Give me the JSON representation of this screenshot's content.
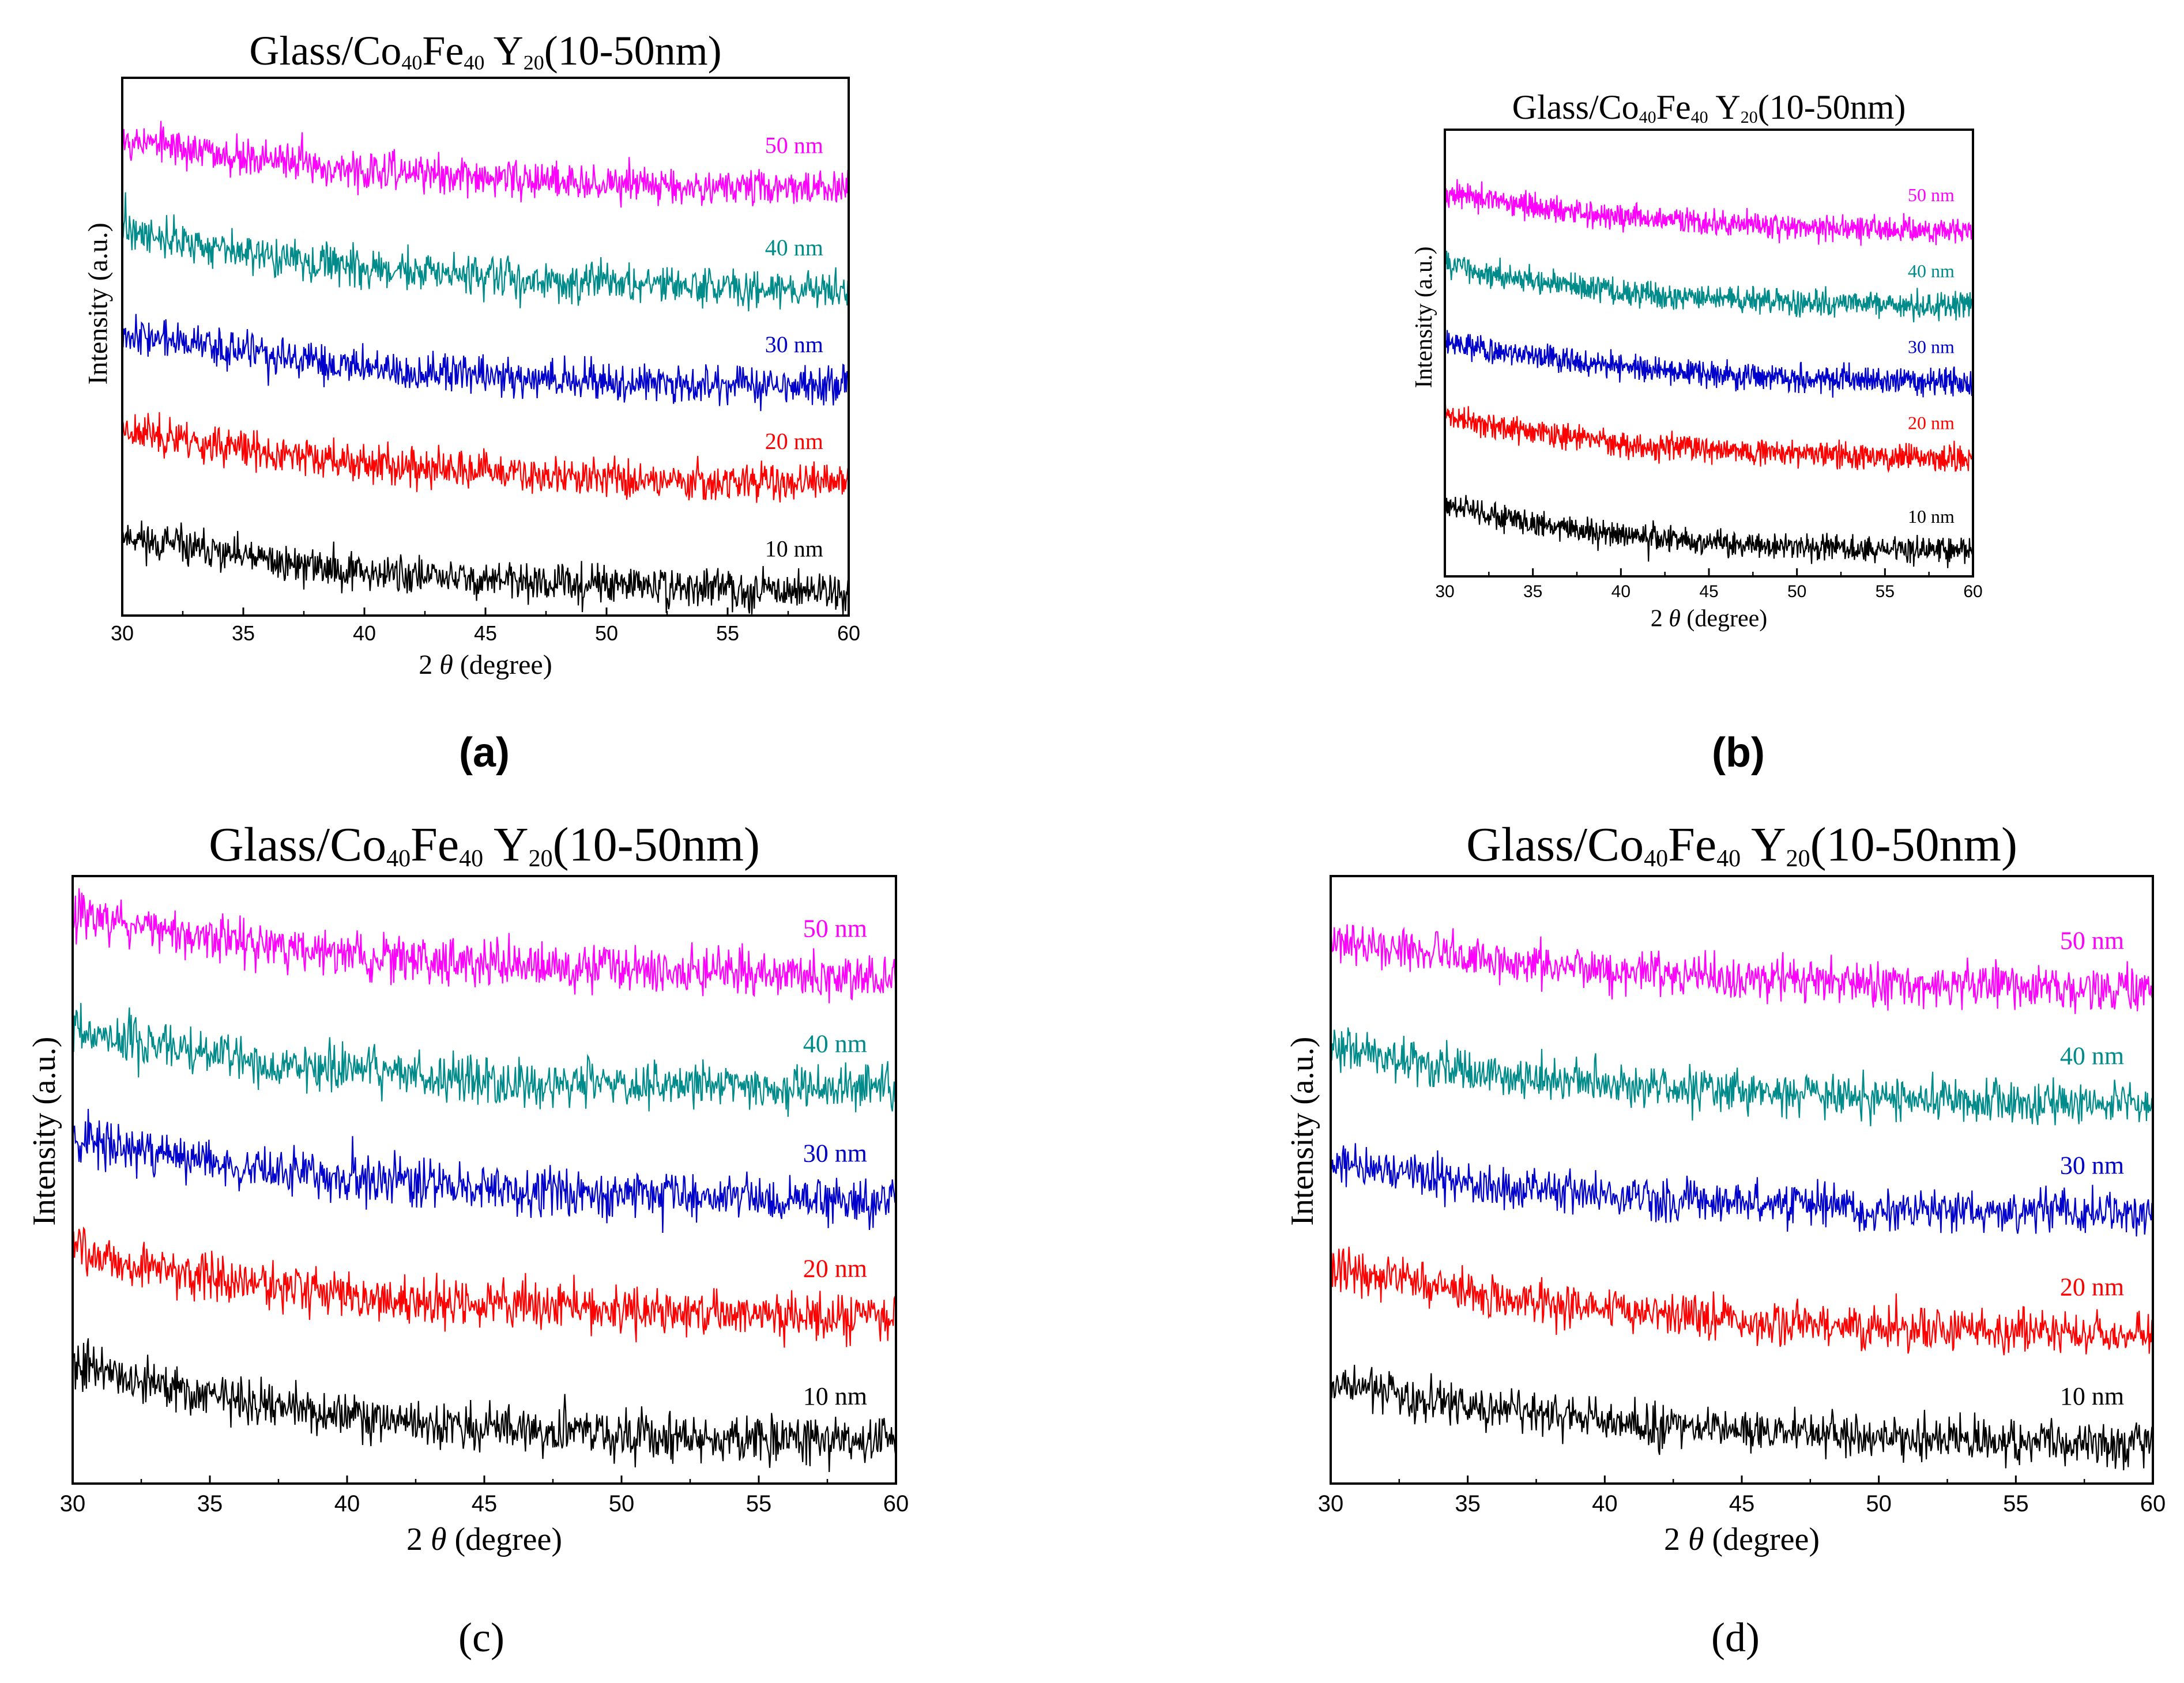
{
  "figure": {
    "panels": [
      {
        "label": "(a)",
        "title_parts": {
          "pre": "Glass/Co",
          "co_sub": "40",
          "fe": "Fe",
          "fe_sub": "40",
          "y": "Y",
          "y_sub": "20",
          "post": "(10-50nm)"
        },
        "xlabel_theta": "θ",
        "xlabel_prefix": "2",
        "xlabel_suffix": "(degree)",
        "ylabel": "Intensity (a.u.)"
      },
      {
        "label": "(b)",
        "title_parts": {
          "pre": "Glass/Co",
          "co_sub": "40",
          "fe": "Fe",
          "fe_sub": "40",
          "y": "Y",
          "y_sub": "20",
          "post": "(10-50nm)"
        },
        "xlabel_theta": "θ",
        "xlabel_prefix": "2",
        "xlabel_suffix": "(degree)",
        "ylabel": "Intensity (a.u.)"
      },
      {
        "label": "(c)",
        "title_parts": {
          "pre": "Glass/Co",
          "co_sub": "40",
          "fe": "Fe",
          "fe_sub": "40",
          "y": "Y",
          "y_sub": "20",
          "post": "(10-50nm)"
        },
        "xlabel_theta": "θ",
        "xlabel_prefix": "2",
        "xlabel_suffix": "(degree)",
        "ylabel": "Intensity (a.u.)"
      },
      {
        "label": "(d)",
        "title_parts": {
          "pre": "Glass/Co",
          "co_sub": "40",
          "fe": "Fe",
          "fe_sub": "40",
          "y": "Y",
          "y_sub": "20",
          "post": "(10-50nm)"
        },
        "xlabel_theta": "θ",
        "xlabel_prefix": "2",
        "xlabel_suffix": "(degree)",
        "ylabel": "Intensity (a.u.)"
      }
    ]
  },
  "chart_data": [
    {
      "type": "line",
      "panel": "(a)",
      "title": "Glass/Co40Fe40Y20(10-50nm)",
      "xlabel": "2 θ (degree)",
      "ylabel": "Intensity (a.u.)",
      "xlim": [
        30,
        60
      ],
      "ylim": [
        0,
        100
      ],
      "xticks": [
        "30",
        "35",
        "40",
        "45",
        "50",
        "55",
        "60"
      ],
      "series": [
        {
          "name": "10 nm",
          "color": "#000000",
          "start": 15,
          "end": 4,
          "noise": 2.2,
          "seed": 11
        },
        {
          "name": "20 nm",
          "color": "#ff0000",
          "start": 35,
          "end": 24,
          "noise": 2.2,
          "seed": 23
        },
        {
          "name": "30 nm",
          "color": "#0000cc",
          "start": 53,
          "end": 42,
          "noise": 2.2,
          "seed": 37
        },
        {
          "name": "40 nm",
          "color": "#008b8b",
          "start": 72,
          "end": 60,
          "noise": 2.2,
          "seed": 41
        },
        {
          "name": "50 nm",
          "color": "#ff00ff",
          "start": 89,
          "end": 79,
          "noise": 2.2,
          "seed": 53
        }
      ]
    },
    {
      "type": "line",
      "panel": "(b)",
      "title": "Glass/Co40Fe40Y20(10-50nm)",
      "xlabel": "2 θ (degree)",
      "ylabel": "Intensity (a.u.)",
      "xlim": [
        30,
        60
      ],
      "ylim": [
        0,
        100
      ],
      "xticks": [
        "30",
        "35",
        "40",
        "45",
        "50",
        "55",
        "60"
      ],
      "series": [
        {
          "name": "10 nm",
          "color": "#000000",
          "start": 16,
          "end": 5,
          "noise": 1.8,
          "seed": 61
        },
        {
          "name": "20 nm",
          "color": "#ff0000",
          "start": 36,
          "end": 26,
          "noise": 1.8,
          "seed": 71
        },
        {
          "name": "30 nm",
          "color": "#0000cc",
          "start": 53,
          "end": 43,
          "noise": 1.8,
          "seed": 79
        },
        {
          "name": "40 nm",
          "color": "#008b8b",
          "start": 70,
          "end": 60,
          "noise": 1.8,
          "seed": 83
        },
        {
          "name": "50 nm",
          "color": "#ff00ff",
          "start": 86,
          "end": 77,
          "noise": 1.8,
          "seed": 97
        }
      ]
    },
    {
      "type": "line",
      "panel": "(c)",
      "title": "Glass/Co40Fe40Y20(10-50nm)",
      "xlabel": "2 θ (degree)",
      "ylabel": "Intensity (a.u.)",
      "xlim": [
        30,
        60
      ],
      "ylim": [
        0,
        100
      ],
      "xticks": [
        "30",
        "35",
        "40",
        "45",
        "50",
        "55",
        "60"
      ],
      "series": [
        {
          "name": "10 nm",
          "color": "#000000",
          "start": 20,
          "end": 6,
          "noise": 2.4,
          "seed": 101
        },
        {
          "name": "20 nm",
          "color": "#ff0000",
          "start": 38,
          "end": 27,
          "noise": 2.4,
          "seed": 103
        },
        {
          "name": "30 nm",
          "color": "#0000cc",
          "start": 57,
          "end": 46,
          "noise": 2.4,
          "seed": 107
        },
        {
          "name": "40 nm",
          "color": "#008b8b",
          "start": 75,
          "end": 64,
          "noise": 2.4,
          "seed": 109
        },
        {
          "name": "50 nm",
          "color": "#ff00ff",
          "start": 94,
          "end": 83,
          "noise": 2.4,
          "seed": 113
        }
      ]
    },
    {
      "type": "line",
      "panel": "(d)",
      "title": "Glass/Co40Fe40Y20(10-50nm)",
      "xlabel": "2 θ (degree)",
      "ylabel": "Intensity (a.u.)",
      "xlim": [
        30,
        60
      ],
      "ylim": [
        0,
        100
      ],
      "xticks": [
        "30",
        "35",
        "40",
        "45",
        "50",
        "55",
        "60"
      ],
      "series": [
        {
          "name": "10 nm",
          "color": "#000000",
          "start": 17,
          "end": 6,
          "noise": 2.2,
          "seed": 127
        },
        {
          "name": "20 nm",
          "color": "#ff0000",
          "start": 36,
          "end": 24,
          "noise": 2.2,
          "seed": 131
        },
        {
          "name": "30 nm",
          "color": "#0000cc",
          "start": 53,
          "end": 44,
          "noise": 2.2,
          "seed": 137
        },
        {
          "name": "40 nm",
          "color": "#008b8b",
          "start": 72,
          "end": 62,
          "noise": 2.2,
          "seed": 139
        },
        {
          "name": "50 nm",
          "color": "#ff00ff",
          "start": 90,
          "end": 81,
          "noise": 2.2,
          "seed": 149
        }
      ]
    }
  ]
}
